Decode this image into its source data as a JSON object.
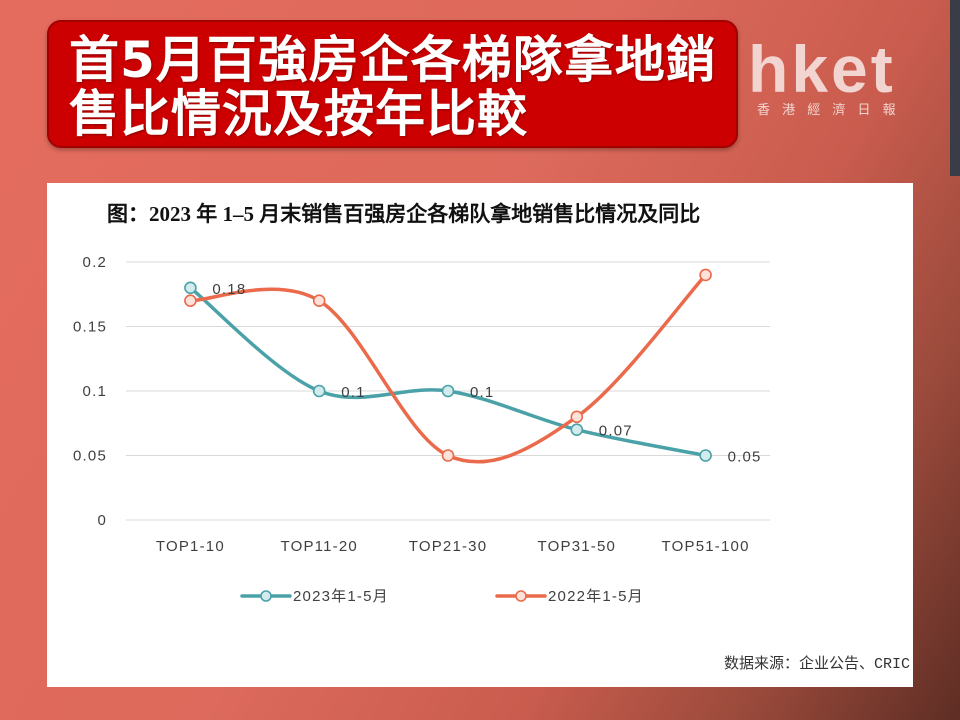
{
  "header": {
    "title_lines": [
      "首5月百強房企各梯隊拿地銷",
      "售比情況及按年比較"
    ]
  },
  "logo": {
    "wordmark": "hket",
    "subtitle": "香 港 經 濟 日 報"
  },
  "colors": {
    "banner": "#cc0000",
    "banner_text": "#ffffff"
  },
  "chart_data": {
    "type": "line",
    "title": "图：2023 年 1–5 月末销售百强房企各梯队拿地销售比情况及同比",
    "categories": [
      "TOP1-10",
      "TOP11-20",
      "TOP21-30",
      "TOP31-50",
      "TOP51-100"
    ],
    "series": [
      {
        "name": "2023年1-5月",
        "values": [
          0.18,
          0.1,
          0.1,
          0.07,
          0.05
        ],
        "color": "#4aa2a8",
        "marker_fill": "#d3ebec",
        "show_data_labels": true
      },
      {
        "name": "2022年1-5月",
        "values": [
          0.17,
          0.17,
          0.05,
          0.08,
          0.19
        ],
        "color": "#ea6a4b",
        "marker_fill": "#fde2da",
        "show_data_labels": false
      }
    ],
    "yticks": [
      0,
      0.05,
      0.1,
      0.15,
      0.2
    ],
    "ylim": [
      0,
      0.2
    ],
    "grid": true,
    "smooth": true,
    "markers": "circle",
    "legend": "bottom",
    "source": {
      "label": "数据来源：企业公告、",
      "org": "CRIC"
    }
  }
}
